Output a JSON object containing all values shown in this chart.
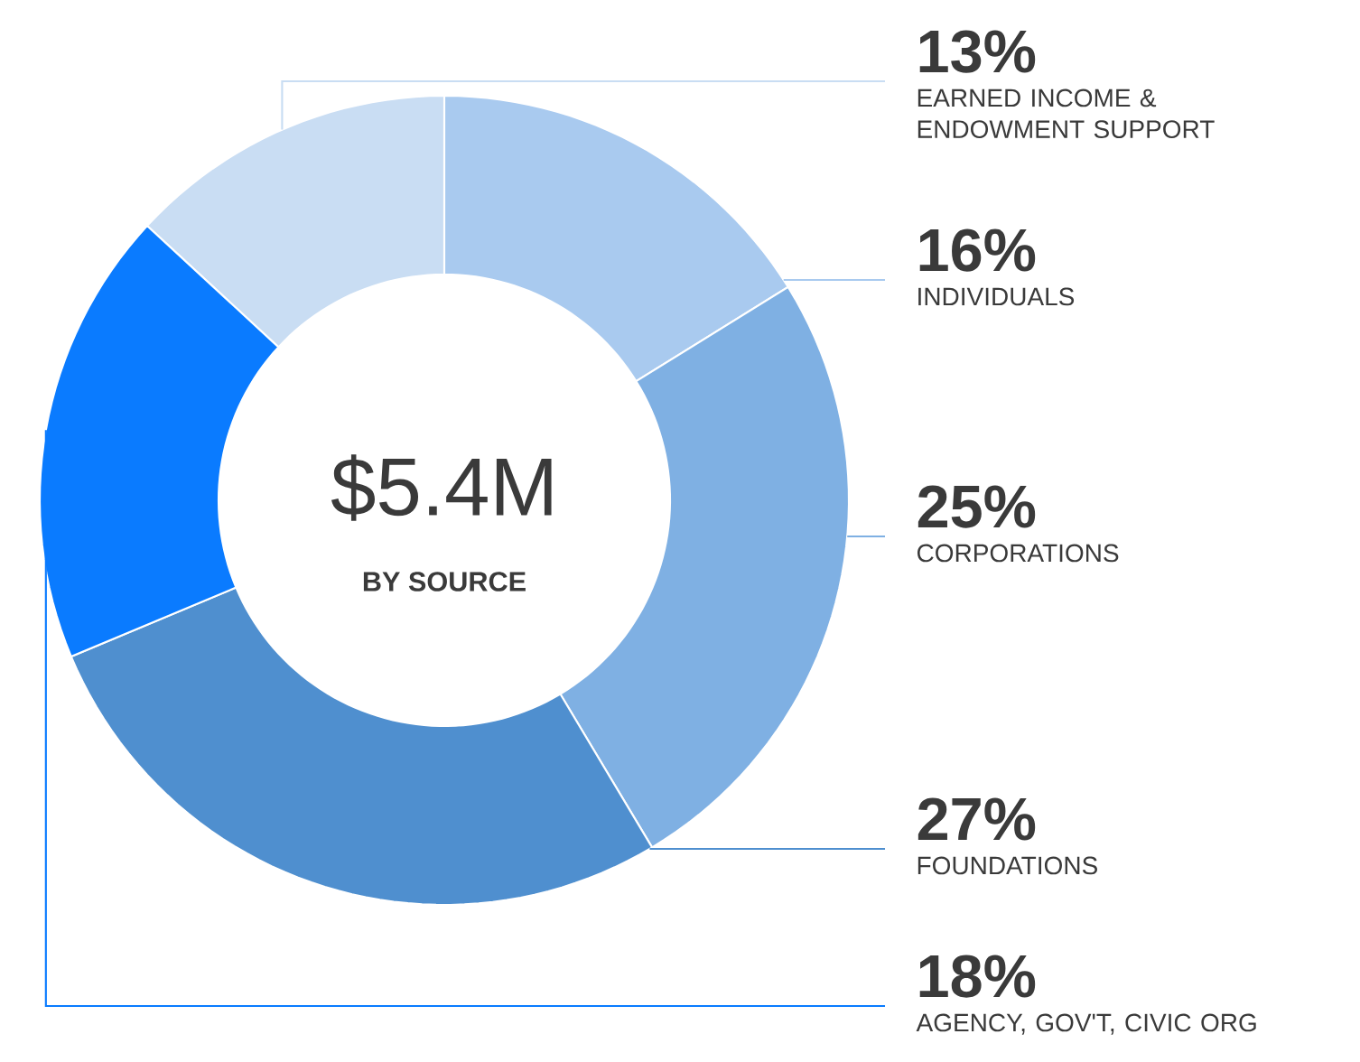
{
  "chart_data": {
    "type": "donut",
    "title": "$5.4M",
    "subtitle": "BY SOURCE",
    "categories": [
      "EARNED INCOME & ENDOWMENT SUPPORT",
      "INDIVIDUALS",
      "CORPORATIONS",
      "FOUNDATIONS",
      "AGENCY, GOV'T, CIVIC ORG"
    ],
    "values": [
      13,
      16,
      25,
      27,
      18
    ],
    "value_labels": [
      "13%",
      "16%",
      "25%",
      "27%",
      "18%"
    ],
    "colors": [
      "#c9ddf3",
      "#a9caef",
      "#7fb0e3",
      "#4f8fcf",
      "#0a7bff"
    ]
  }
}
